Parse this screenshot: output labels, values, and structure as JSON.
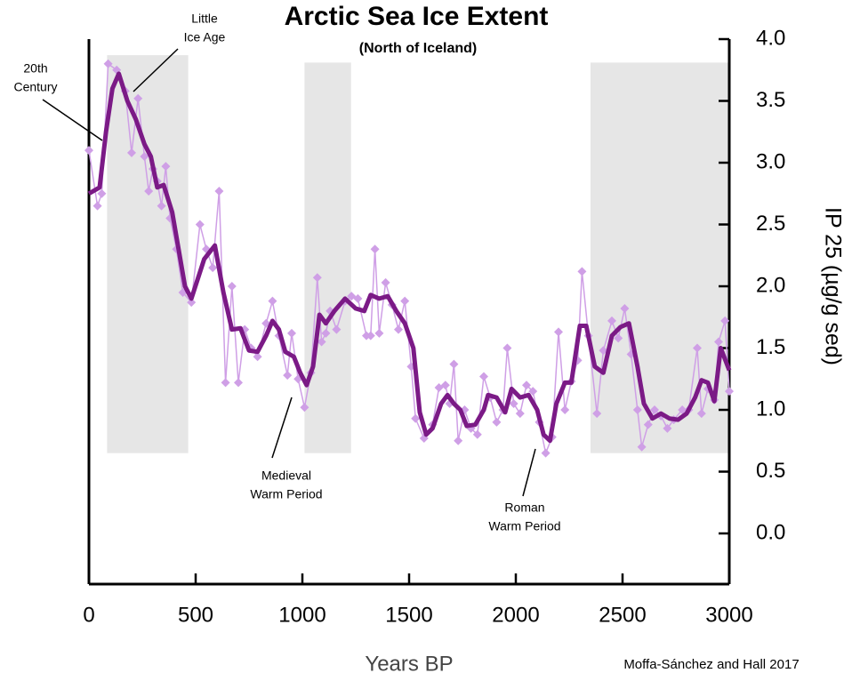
{
  "chart_data": {
    "type": "line",
    "title": "Arctic Sea Ice Extent",
    "subtitle": "(North of Iceland)",
    "x_label": "Years BP",
    "y_label": "IP 25 (µg/g sed)",
    "source": "Moffa-Sánchez and Hall 2017",
    "xlim": [
      0,
      3000
    ],
    "xticks": [
      0,
      500,
      1000,
      1500,
      2000,
      2500,
      3000
    ],
    "ylim": [
      -0.41,
      4.0
    ],
    "yticks": [
      {
        "value": 0,
        "label": "0.0"
      },
      0.5,
      {
        "value": 1,
        "label": "1.0"
      },
      1.5,
      {
        "value": 2,
        "label": "2.0"
      },
      2.5,
      {
        "value": 3,
        "label": "3.0"
      },
      3.5,
      {
        "value": 4,
        "label": "4.0"
      }
    ],
    "shaded_regions": [
      {
        "x": [
          85,
          465
        ],
        "y": [
          0.65,
          3.87
        ]
      },
      {
        "x": [
          1010,
          1228
        ],
        "y": [
          0.65,
          3.81
        ]
      },
      {
        "x": [
          2350,
          2995
        ],
        "y": [
          0.65,
          3.81
        ]
      }
    ],
    "annotations": [
      {
        "lines": [
          "20th",
          "Century"
        ]
      },
      {
        "lines": [
          "Little",
          "Ice Age"
        ]
      },
      {
        "lines": [
          "Medieval",
          "Warm Period"
        ]
      },
      {
        "lines": [
          "Roman",
          "Warm Period"
        ]
      }
    ],
    "series": [
      {
        "color": "#cf9fe6",
        "markers": true,
        "x": [
          0,
          40,
          60,
          90,
          130,
          170,
          200,
          230,
          260,
          280,
          300,
          320,
          340,
          360,
          380,
          410,
          440,
          480,
          520,
          550,
          580,
          610,
          640,
          670,
          700,
          730,
          760,
          790,
          830,
          860,
          890,
          930,
          950,
          980,
          1010,
          1040,
          1070,
          1090,
          1110,
          1130,
          1160,
          1200,
          1230,
          1260,
          1300,
          1320,
          1340,
          1360,
          1390,
          1420,
          1450,
          1480,
          1510,
          1530,
          1570,
          1610,
          1640,
          1670,
          1690,
          1710,
          1730,
          1760,
          1790,
          1820,
          1850,
          1880,
          1910,
          1940,
          1960,
          1990,
          2020,
          2050,
          2080,
          2110,
          2140,
          2170,
          2200,
          2230,
          2260,
          2290,
          2310,
          2340,
          2380,
          2410,
          2450,
          2480,
          2510,
          2540,
          2570,
          2590,
          2620,
          2650,
          2680,
          2710,
          2740,
          2780,
          2810,
          2850,
          2870,
          2900,
          2930,
          2950,
          2980,
          3000
        ],
        "values": [
          3.1,
          2.65,
          2.75,
          3.8,
          3.75,
          3.58,
          3.08,
          3.52,
          3.05,
          2.77,
          2.95,
          2.85,
          2.65,
          2.97,
          2.55,
          2.3,
          1.95,
          1.87,
          2.5,
          2.3,
          2.15,
          2.77,
          1.22,
          2.0,
          1.22,
          1.65,
          1.5,
          1.43,
          1.7,
          1.88,
          1.6,
          1.28,
          1.62,
          1.25,
          1.02,
          1.3,
          2.07,
          1.55,
          1.62,
          1.8,
          1.65,
          1.88,
          1.92,
          1.9,
          1.6,
          1.6,
          2.3,
          1.62,
          2.03,
          1.85,
          1.65,
          1.88,
          1.35,
          0.93,
          0.77,
          0.88,
          1.18,
          1.2,
          1.05,
          1.37,
          0.75,
          1.0,
          0.85,
          0.8,
          1.27,
          1.1,
          0.9,
          1.0,
          1.5,
          1.05,
          0.97,
          1.2,
          1.15,
          0.9,
          0.65,
          0.78,
          1.63,
          1.0,
          1.23,
          1.4,
          2.12,
          1.6,
          0.97,
          1.48,
          1.72,
          1.58,
          1.82,
          1.45,
          1.0,
          0.7,
          0.88,
          1.0,
          0.95,
          0.85,
          0.92,
          1.0,
          1.0,
          1.5,
          0.97,
          1.17,
          1.08,
          1.55,
          1.72,
          1.15
        ]
      },
      {
        "color": "#7b1a86",
        "markers": false,
        "x": [
          0,
          50,
          80,
          110,
          140,
          180,
          220,
          260,
          290,
          320,
          350,
          390,
          420,
          450,
          480,
          540,
          590,
          630,
          670,
          710,
          750,
          790,
          830,
          860,
          890,
          920,
          960,
          990,
          1020,
          1050,
          1080,
          1110,
          1150,
          1200,
          1250,
          1290,
          1320,
          1360,
          1400,
          1440,
          1480,
          1520,
          1550,
          1580,
          1610,
          1650,
          1680,
          1710,
          1740,
          1770,
          1810,
          1850,
          1870,
          1910,
          1950,
          1980,
          2020,
          2060,
          2100,
          2130,
          2160,
          2190,
          2230,
          2260,
          2300,
          2330,
          2370,
          2410,
          2450,
          2490,
          2530,
          2570,
          2600,
          2640,
          2680,
          2720,
          2760,
          2800,
          2840,
          2870,
          2900,
          2930,
          2960,
          3000
        ],
        "values": [
          2.75,
          2.8,
          3.25,
          3.6,
          3.72,
          3.5,
          3.35,
          3.15,
          3.05,
          2.8,
          2.82,
          2.6,
          2.3,
          2.0,
          1.9,
          2.22,
          2.33,
          1.95,
          1.65,
          1.66,
          1.48,
          1.47,
          1.6,
          1.72,
          1.65,
          1.47,
          1.43,
          1.3,
          1.2,
          1.35,
          1.77,
          1.7,
          1.8,
          1.9,
          1.82,
          1.8,
          1.93,
          1.9,
          1.92,
          1.8,
          1.7,
          1.5,
          0.98,
          0.8,
          0.85,
          1.05,
          1.12,
          1.05,
          1.0,
          0.87,
          0.88,
          1.0,
          1.12,
          1.1,
          0.98,
          1.17,
          1.1,
          1.12,
          1.0,
          0.8,
          0.75,
          1.05,
          1.22,
          1.22,
          1.68,
          1.68,
          1.35,
          1.3,
          1.6,
          1.67,
          1.7,
          1.35,
          1.05,
          0.93,
          0.97,
          0.93,
          0.92,
          0.97,
          1.1,
          1.24,
          1.22,
          1.07,
          1.5,
          1.32
        ]
      }
    ]
  }
}
